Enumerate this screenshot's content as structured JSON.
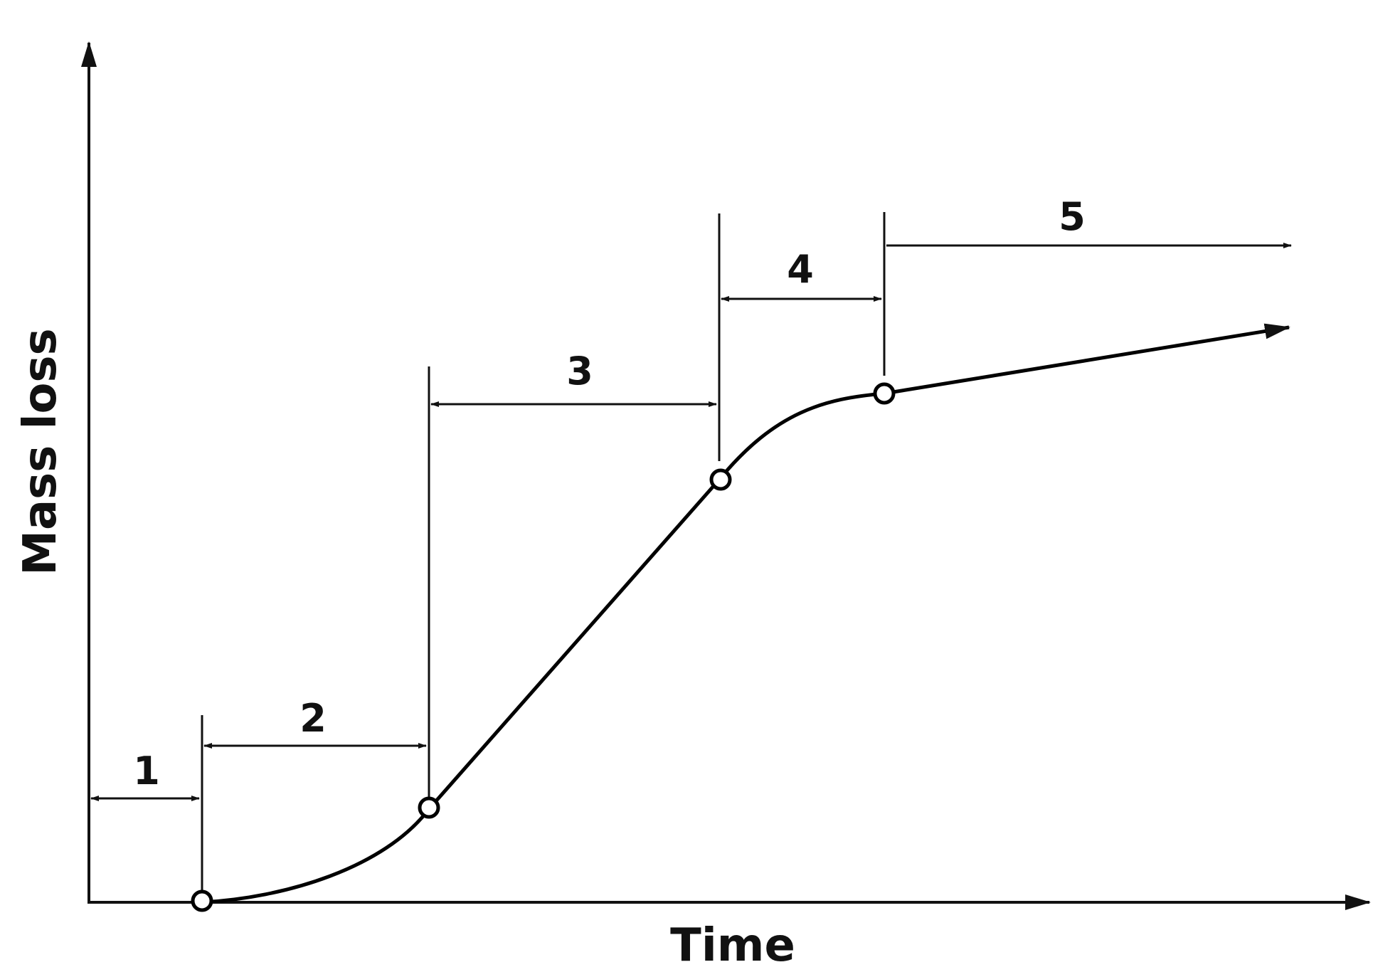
{
  "axes": {
    "x_label": "Time",
    "y_label": "Mass loss"
  },
  "stages": [
    {
      "label": "1"
    },
    {
      "label": "2"
    },
    {
      "label": "3"
    },
    {
      "label": "4"
    },
    {
      "label": "5"
    }
  ],
  "colors": {
    "line": "#000000",
    "background": "#ffffff",
    "point_fill": "#ffffff"
  }
}
